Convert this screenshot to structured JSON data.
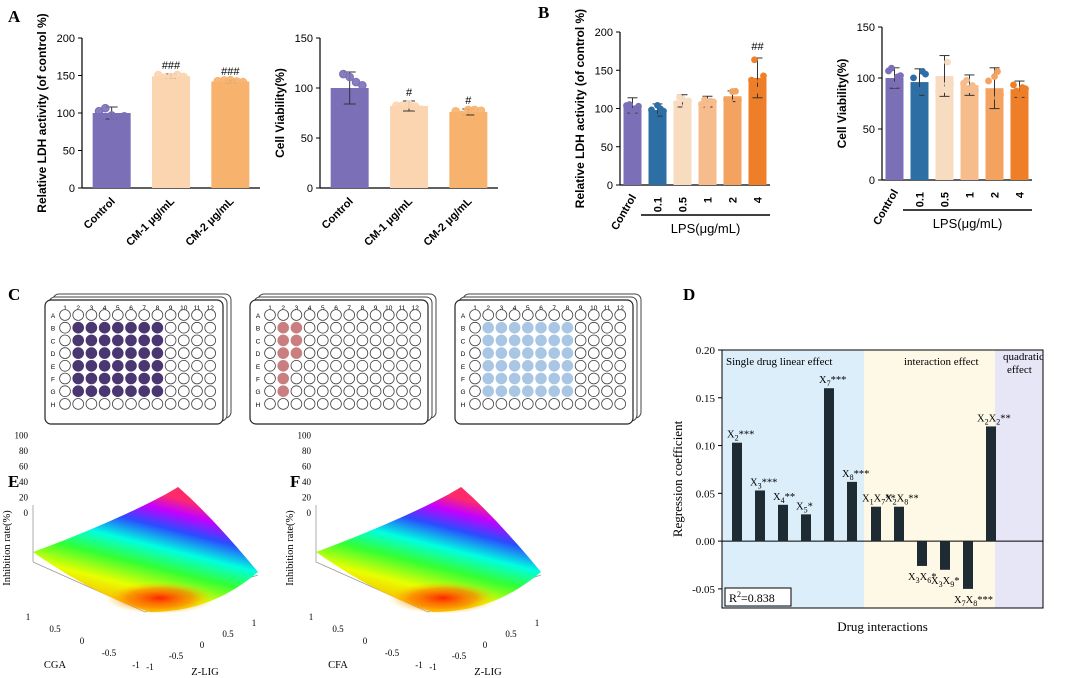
{
  "figure": {
    "panels": {
      "A": "A",
      "B": "B",
      "C": "C",
      "D": "D",
      "E": "E",
      "F": "F"
    }
  },
  "colors": {
    "control": "#7b6fb8",
    "cm1": "#fbd5b0",
    "cm2": "#f7b26e",
    "lps01": "#2d6ea5",
    "lps05": "#f7dcc0",
    "lps1": "#f6bc8c",
    "lps2": "#f3a260",
    "lps4": "#ee7e27",
    "plate1": "#4a3670",
    "plate2": "#c97f80",
    "plate3": "#a9c7e4",
    "dbar": "#1f2b33",
    "bg_linear": "#dceef9",
    "bg_interact": "#fdf9e6",
    "bg_quad": "#e6e6f7"
  },
  "plates": {
    "rows": [
      "A",
      "B",
      "C",
      "D",
      "E",
      "F",
      "G",
      "H"
    ],
    "cols": [
      "1",
      "2",
      "3",
      "4",
      "5",
      "6",
      "7",
      "8",
      "9",
      "10",
      "11",
      "12"
    ]
  },
  "chart_data": [
    {
      "id": "A-LDH",
      "type": "bar",
      "ylabel": "Relative LDH activity (of control %)",
      "ylim": [
        0,
        200
      ],
      "yticks": [
        "0",
        "50",
        "100",
        "150",
        "200"
      ],
      "categories": [
        "Control",
        "CM-1 μg/mL",
        "CM-2 μg/mL"
      ],
      "values": [
        100,
        149,
        142
      ],
      "errors": [
        8,
        3,
        2
      ],
      "annotations": [
        "",
        "###",
        "###"
      ]
    },
    {
      "id": "A-Via",
      "type": "bar",
      "ylabel": "Cell Viability(%)",
      "ylim": [
        0,
        150
      ],
      "yticks": [
        "0",
        "50",
        "100",
        "150"
      ],
      "categories": [
        "Control",
        "CM-1 μg/mL",
        "CM-2 μg/mL"
      ],
      "values": [
        100,
        82,
        76
      ],
      "errors": [
        16,
        5,
        3
      ],
      "annotations": [
        "",
        "#",
        "#"
      ]
    },
    {
      "id": "B-LDH",
      "type": "bar",
      "ylabel": "Relative LDH activity (of control %)",
      "ylim": [
        0,
        200
      ],
      "yticks": [
        "0",
        "50",
        "100",
        "150",
        "200"
      ],
      "categories": [
        "Control",
        "0.1",
        "0.5",
        "1",
        "2",
        "4"
      ],
      "values": [
        104,
        98,
        110,
        109,
        116,
        140
      ],
      "errors": [
        10,
        8,
        8,
        7,
        7,
        26
      ],
      "annotations": [
        "",
        "",
        "",
        "",
        "",
        "##"
      ],
      "group_label": "LPS(μg/mL)"
    },
    {
      "id": "B-Via",
      "type": "bar",
      "ylabel": "Cell Viability(%)",
      "ylim": [
        0,
        150
      ],
      "yticks": [
        "0",
        "50",
        "100",
        "150"
      ],
      "categories": [
        "Control",
        "0.1",
        "0.5",
        "1",
        "2",
        "4"
      ],
      "values": [
        100,
        96,
        102,
        93,
        90,
        89
      ],
      "errors": [
        10,
        13,
        20,
        10,
        20,
        8
      ],
      "annotations": [
        "",
        "",
        "",
        "",
        "",
        ""
      ],
      "group_label": "LPS(μg/mL)"
    },
    {
      "id": "D",
      "type": "bar",
      "xlabel": "Drug interactions",
      "ylabel": "Regression coefficient",
      "ylim": [
        -0.07,
        0.2
      ],
      "yticks": [
        "-0.05",
        "0.00",
        "0.05",
        "0.10",
        "0.15",
        "0.20"
      ],
      "regions": [
        "Single drug linear effect",
        "interaction effect",
        "quadratic",
        "effect"
      ],
      "values": [
        0.103,
        0.053,
        0.038,
        0.028,
        0.16,
        0.062,
        0.036,
        0.036,
        -0.026,
        -0.03,
        -0.05,
        0.12
      ],
      "bar_labels": [
        {
          "base": "X",
          "sub": "2",
          "rest": "***"
        },
        {
          "base": "X",
          "sub": "3",
          "rest": "***"
        },
        {
          "base": "X",
          "sub": "4",
          "rest": "**"
        },
        {
          "base": "X",
          "sub": "5",
          "rest": "*"
        },
        {
          "base": "X",
          "sub": "7",
          "rest": "***"
        },
        {
          "base": "X",
          "sub": "8",
          "rest": "***"
        },
        {
          "base": "X",
          "sub": "1",
          "rest": "X",
          "sub2": "7",
          "rest2": "**"
        },
        {
          "base": "X",
          "sub": "2",
          "rest": "X",
          "sub2": "8",
          "rest2": "**"
        },
        {
          "base": "X",
          "sub": "3",
          "rest": "X",
          "sub2": "6",
          "rest2": "*"
        },
        {
          "base": "X",
          "sub": "3",
          "rest": "X",
          "sub2": "9",
          "rest2": "*"
        },
        {
          "base": "X",
          "sub": "7",
          "rest": "X",
          "sub2": "8",
          "rest2": "***"
        },
        {
          "base": "X",
          "sub": "2",
          "rest": "X",
          "sub2": "2",
          "rest2": "**"
        }
      ],
      "r2": {
        "prefix": "R",
        "sup": "2",
        "rest": "=0.838"
      }
    },
    {
      "id": "E",
      "type": "surface",
      "zlabel": "Inhibition rate(%)",
      "zticks": [
        "0",
        "20",
        "40",
        "60",
        "80",
        "100"
      ],
      "xlabel": "Z-LIG",
      "ylabel": "CGA",
      "xticks": [
        "-1",
        "-0.5",
        "0",
        "0.5",
        "1"
      ],
      "yticks": [
        "1",
        "0.5",
        "0",
        "-0.5",
        "-1"
      ]
    },
    {
      "id": "F",
      "type": "surface",
      "zlabel": "Inhibition rate(%)",
      "zticks": [
        "0",
        "20",
        "40",
        "60",
        "80",
        "100"
      ],
      "xlabel": "Z-LIG",
      "ylabel": "CFA",
      "xticks": [
        "-1",
        "-0.5",
        "0",
        "0.5",
        "1"
      ],
      "yticks": [
        "1",
        "0.5",
        "0",
        "-0.5",
        "-1"
      ]
    }
  ]
}
